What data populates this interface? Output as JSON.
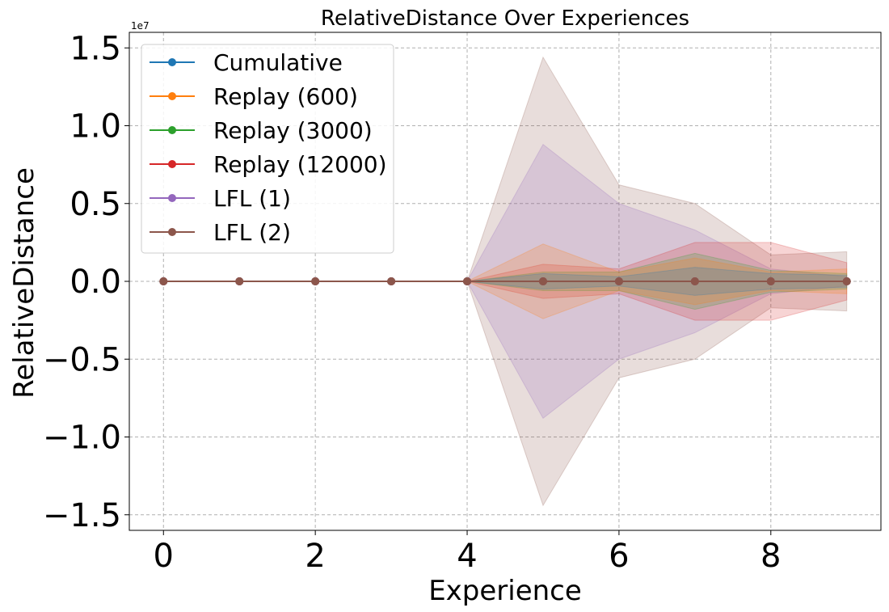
{
  "chart_data": {
    "type": "line",
    "title": "RelativeDistance Over Experiences",
    "xlabel": "Experience",
    "ylabel": "RelativeDistance",
    "offset_label": "1e7",
    "x": [
      0,
      1,
      2,
      3,
      4,
      5,
      6,
      7,
      8,
      9
    ],
    "xlim": [
      -0.45,
      9.45
    ],
    "ylim": [
      -1.6,
      1.6
    ],
    "y_multiplier": 10000000,
    "xticks": [
      0,
      2,
      4,
      6,
      8
    ],
    "xtick_labels": [
      "0",
      "2",
      "4",
      "6",
      "8"
    ],
    "yticks": [
      1.5,
      1.0,
      0.5,
      0.0,
      -0.5,
      -1.0,
      -1.5
    ],
    "ytick_labels": [
      "1.5",
      "1.0",
      "0.5",
      "0.0",
      "−0.5",
      "−1.0",
      "−1.5"
    ],
    "grid": true,
    "legend_position": "upper left",
    "series": [
      {
        "name": "Cumulative",
        "color": "#1f77b4",
        "values": [
          0,
          0,
          0,
          0,
          0,
          0,
          0,
          0,
          0,
          0
        ],
        "band": [
          0,
          0,
          0,
          0,
          0,
          0.05,
          0.03,
          0.09,
          0.05,
          0.04
        ]
      },
      {
        "name": "Replay (600)",
        "color": "#ff7f0e",
        "values": [
          0,
          0,
          0,
          0,
          0,
          0,
          0,
          0,
          0,
          0
        ],
        "band": [
          0,
          0,
          0,
          0,
          0,
          0.24,
          0.06,
          0.15,
          0.06,
          0.08
        ]
      },
      {
        "name": "Replay (3000)",
        "color": "#2ca02c",
        "values": [
          0,
          0,
          0,
          0,
          0,
          0,
          0,
          0,
          0,
          0
        ],
        "band": [
          0,
          0,
          0,
          0,
          0,
          0.06,
          0.06,
          0.18,
          0.07,
          0.05
        ]
      },
      {
        "name": "Replay (12000)",
        "color": "#d62728",
        "values": [
          0,
          0,
          0,
          0,
          0,
          0,
          0,
          0,
          0,
          0
        ],
        "band": [
          0,
          0,
          0,
          0,
          0,
          0.11,
          0.08,
          0.25,
          0.25,
          0.12
        ]
      },
      {
        "name": "LFL (1)",
        "color": "#9467bd",
        "values": [
          0,
          0,
          0,
          0,
          0,
          0,
          0,
          0,
          0,
          0
        ],
        "band": [
          0,
          0,
          0,
          0,
          0,
          0.88,
          0.5,
          0.33,
          0.08,
          0.03
        ]
      },
      {
        "name": "LFL (2)",
        "color": "#8c564b",
        "values": [
          0,
          0,
          0,
          0,
          0,
          0,
          0,
          0,
          0,
          0
        ],
        "band": [
          0,
          0,
          0,
          0,
          0,
          1.44,
          0.62,
          0.5,
          0.17,
          0.19
        ]
      }
    ]
  }
}
